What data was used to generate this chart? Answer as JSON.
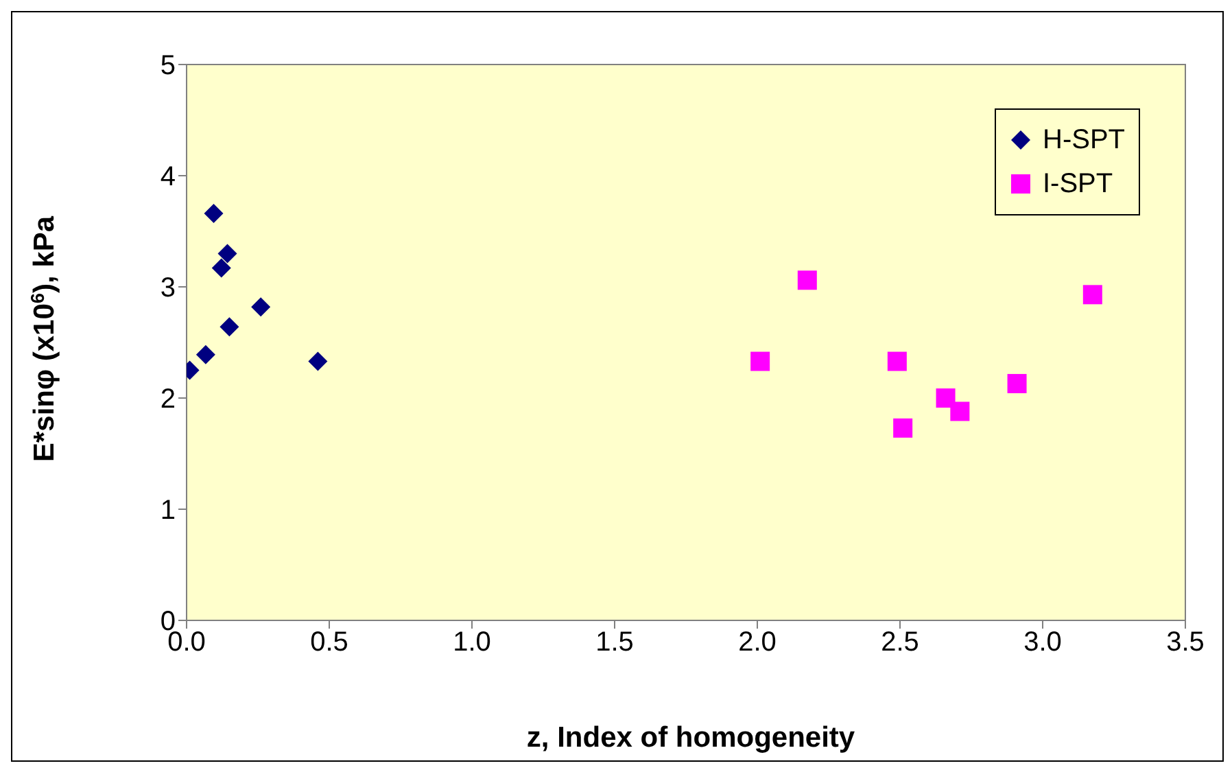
{
  "chart_data": {
    "type": "scatter",
    "xlabel": "z, Index of homogeneity",
    "ylabel": "E*sinφ (x10$^{6}$), kPa",
    "xlim": [
      0,
      3.5
    ],
    "xticks": [
      {
        "value": 0,
        "label": "0.0"
      },
      {
        "value": 0.5,
        "label": "0.5"
      },
      {
        "value": 1,
        "label": "1.0"
      },
      {
        "value": 1.5,
        "label": "1.5"
      },
      {
        "value": 2,
        "label": "2.0"
      },
      {
        "value": 2.5,
        "label": "2.5"
      },
      {
        "value": 3,
        "label": "3.0"
      },
      {
        "value": 3.5,
        "label": "3.5"
      }
    ],
    "ylim": [
      0,
      5
    ],
    "yticks": [
      0,
      1,
      2,
      3,
      4,
      5
    ],
    "legend": "top right",
    "series": [
      {
        "name": "H-SPT",
        "color": "#000080",
        "marker": "diamond",
        "x": [
          0.095,
          0.143,
          0.122,
          0.26,
          0.15,
          0.067,
          0.011,
          0.46
        ],
        "values": [
          3.66,
          3.3,
          3.17,
          2.82,
          2.64,
          2.39,
          2.25,
          2.33
        ]
      },
      {
        "name": "I-SPT",
        "color": "#ff00ff",
        "marker": "square",
        "x": [
          2.175,
          3.175,
          2.01,
          2.49,
          2.91,
          2.66,
          2.71,
          2.51
        ],
        "values": [
          3.06,
          2.93,
          2.33,
          2.33,
          2.13,
          2.0,
          1.88,
          1.73
        ]
      }
    ]
  }
}
